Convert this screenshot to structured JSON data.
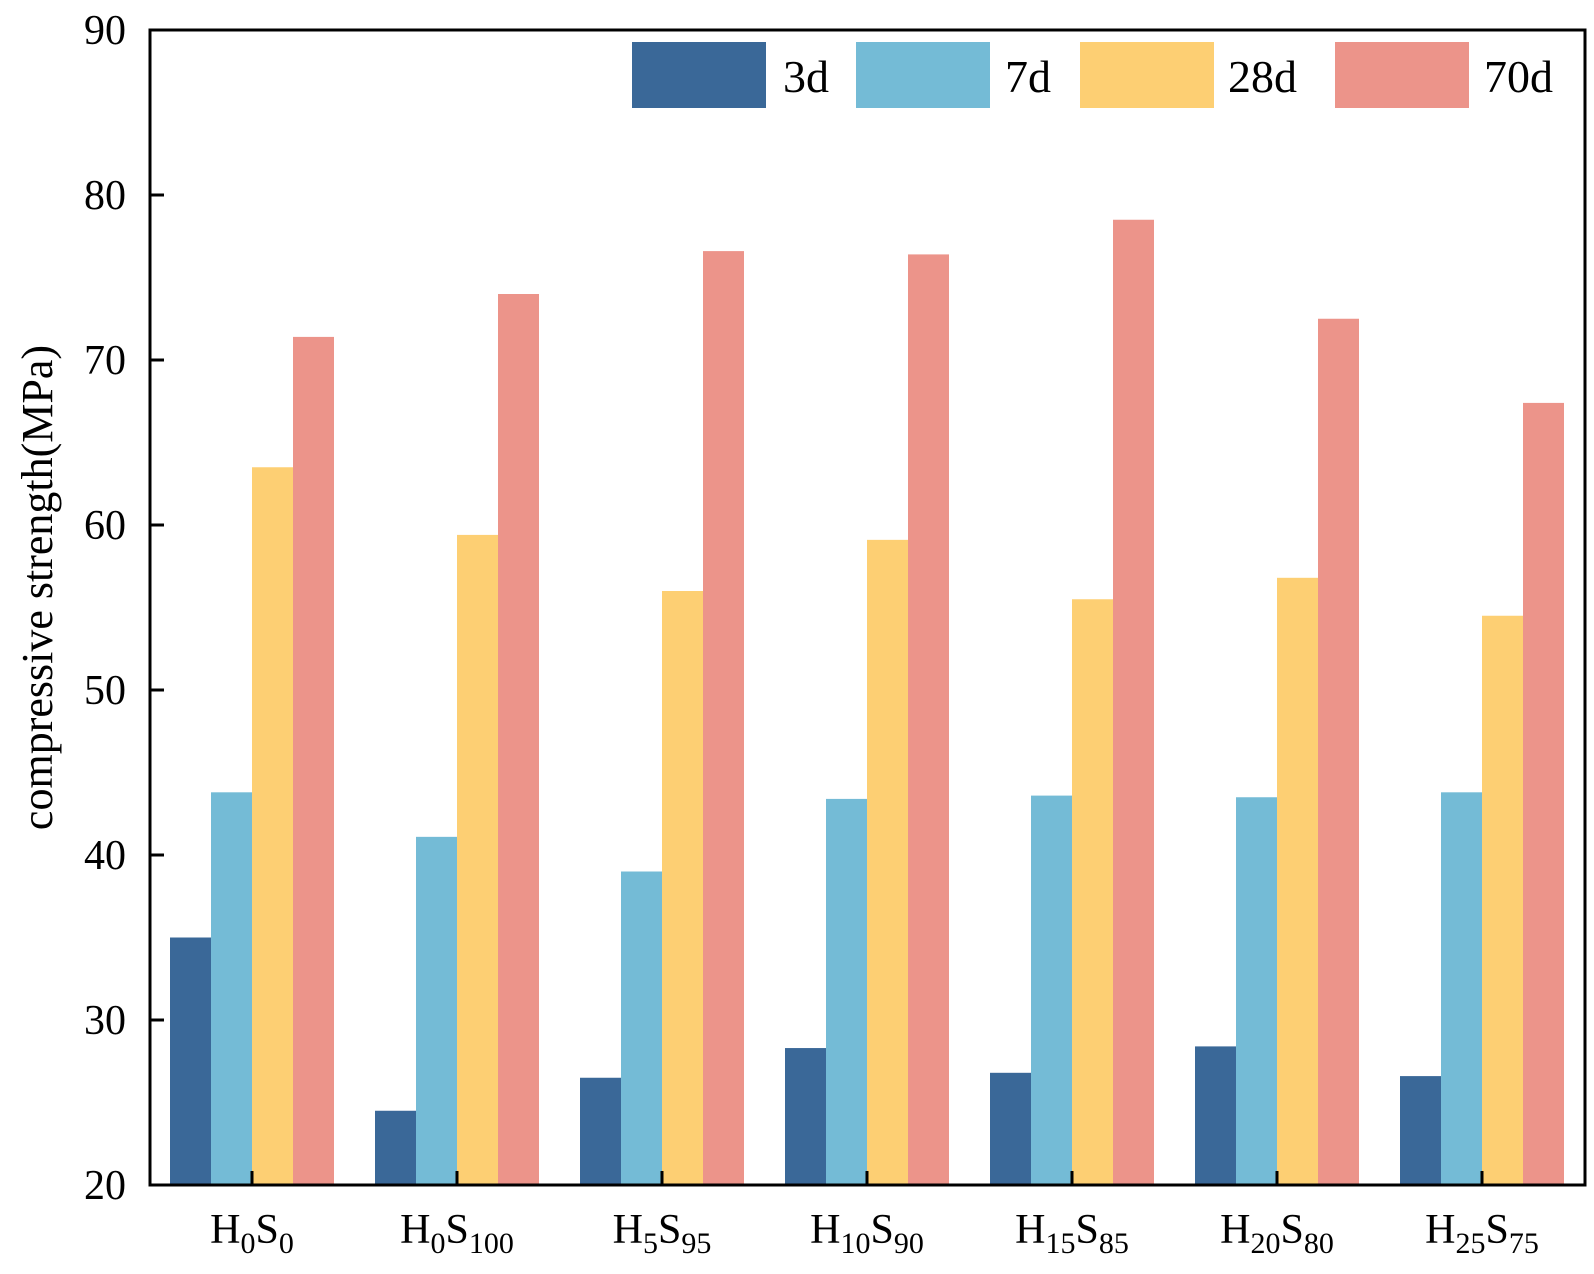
{
  "chart_data": {
    "type": "bar",
    "title": "",
    "xlabel": "",
    "ylabel": "compressive strength(MPa)",
    "ylim": [
      20,
      90
    ],
    "yticks": [
      20,
      30,
      40,
      50,
      60,
      70,
      80,
      90
    ],
    "grid": false,
    "legend_position": "top-right",
    "categories": [
      {
        "base": "H",
        "sub1": "0",
        "mid": "S",
        "sub2": "0"
      },
      {
        "base": "H",
        "sub1": "0",
        "mid": "S",
        "sub2": "100"
      },
      {
        "base": "H",
        "sub1": "5",
        "mid": "S",
        "sub2": "95"
      },
      {
        "base": "H",
        "sub1": "10",
        "mid": "S",
        "sub2": "90"
      },
      {
        "base": "H",
        "sub1": "15",
        "mid": "S",
        "sub2": "85"
      },
      {
        "base": "H",
        "sub1": "20",
        "mid": "S",
        "sub2": "80"
      },
      {
        "base": "H",
        "sub1": "25",
        "mid": "S",
        "sub2": "75"
      }
    ],
    "series": [
      {
        "name": "3d",
        "color": "#3a6898",
        "values": [
          35.0,
          24.5,
          26.5,
          28.3,
          26.8,
          28.4,
          26.6
        ]
      },
      {
        "name": "7d",
        "color": "#74bbd6",
        "values": [
          43.8,
          41.1,
          39.0,
          43.4,
          43.6,
          43.5,
          43.8
        ]
      },
      {
        "name": "28d",
        "color": "#fdcf73",
        "values": [
          63.5,
          59.4,
          56.0,
          59.1,
          55.5,
          56.8,
          54.5
        ]
      },
      {
        "name": "70d",
        "color": "#ec948a",
        "values": [
          71.4,
          74.0,
          76.6,
          76.4,
          78.5,
          72.5,
          67.4
        ]
      }
    ]
  }
}
